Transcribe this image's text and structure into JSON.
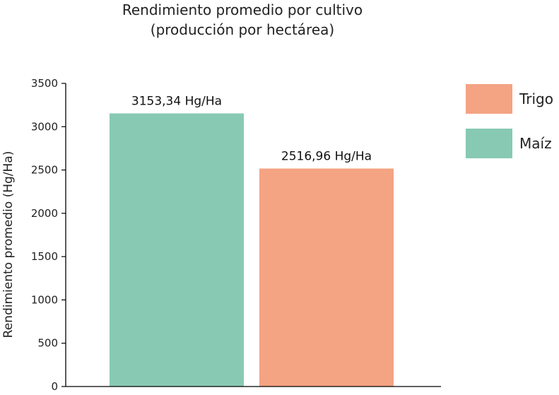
{
  "chart_data": {
    "type": "bar",
    "title_lines": [
      "Rendimiento promedio por cultivo",
      "(producción por hectárea)"
    ],
    "xlabel": "",
    "ylabel": "Rendimiento promedio (Hg/Ha)",
    "ylim": [
      0,
      3500
    ],
    "yticks": [
      0,
      500,
      1000,
      1500,
      2000,
      2500,
      3000,
      3500
    ],
    "grid": false,
    "legend_position": "top-right",
    "categories": [
      "Maíz",
      "Trigo"
    ],
    "values": [
      3153.34,
      2516.96
    ],
    "data_labels": [
      "3153,34 Hg/Ha",
      "2516,96 Hg/Ha"
    ],
    "colors": [
      "#88c9b4",
      "#f4a383"
    ],
    "legend": [
      {
        "label": "Trigo",
        "color": "#f4a383"
      },
      {
        "label": "Maíz",
        "color": "#88c9b4"
      }
    ]
  }
}
